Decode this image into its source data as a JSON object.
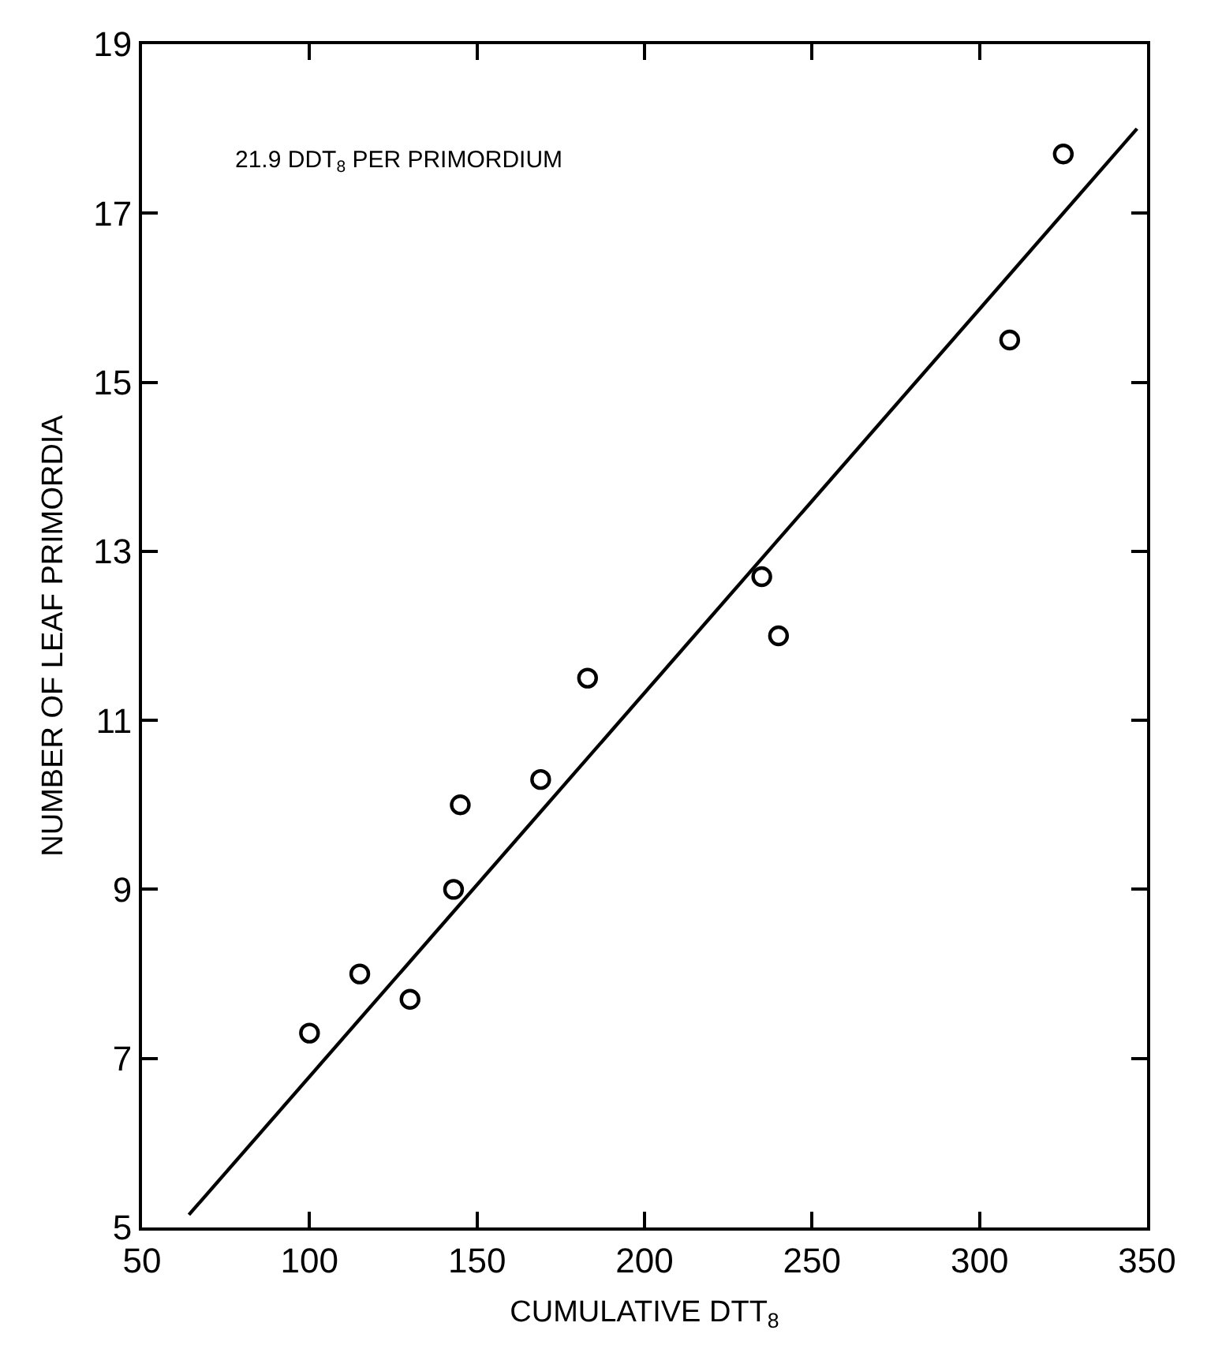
{
  "chart_data": {
    "type": "scatter",
    "xlabel": "CUMULATIVE DTT$_{8}$",
    "ylabel": "NUMBER OF LEAF PRIMORDIA",
    "annotations": [
      "21.9 DDT$_{8}$ PER PRIMORDIUM"
    ],
    "x": [
      100,
      115,
      130,
      143,
      145,
      169,
      183,
      235,
      240,
      309,
      325
    ],
    "series": [
      {
        "type": "scatter",
        "color": "#000000",
        "marker": "circle",
        "values": [
          7.3,
          8.0,
          7.7,
          9.0,
          10.0,
          10.3,
          11.5,
          12.7,
          12.0,
          15.5,
          17.7
        ]
      },
      {
        "type": "line",
        "color": "#000000",
        "line_style": "solid",
        "x": [
          64,
          347
        ],
        "values": [
          5.15,
          18.0
        ]
      }
    ],
    "xlim": [
      50,
      350
    ],
    "xticks": [
      50,
      100,
      150,
      200,
      250,
      300,
      350
    ],
    "ylim": [
      5,
      19
    ],
    "yticks": [
      5,
      7,
      9,
      11,
      13,
      15,
      17,
      19
    ]
  }
}
